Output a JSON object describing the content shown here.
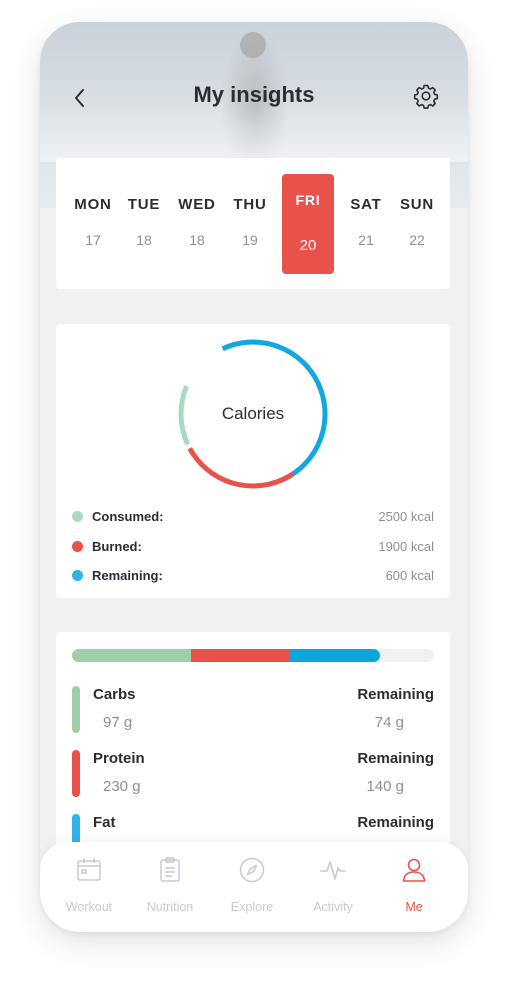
{
  "header": {
    "title": "My insights"
  },
  "week": [
    {
      "day": "MON",
      "date": "17",
      "active": false
    },
    {
      "day": "TUE",
      "date": "18",
      "active": false
    },
    {
      "day": "WED",
      "date": "18",
      "active": false
    },
    {
      "day": "THU",
      "date": "19",
      "active": false
    },
    {
      "day": "FRI",
      "date": "20",
      "active": true
    },
    {
      "day": "SAT",
      "date": "21",
      "active": false
    },
    {
      "day": "SUN",
      "date": "22",
      "active": false
    }
  ],
  "calories": {
    "label": "Calories",
    "legend": [
      {
        "label": "Consumed:",
        "value": "2500 kcal",
        "color": "#9fd1b5"
      },
      {
        "label": "Burned:",
        "value": "1900 kcal",
        "color": "#e8524a"
      },
      {
        "label": "Remaining:",
        "value": "600 kcal",
        "color": "#2fb3e8"
      }
    ]
  },
  "macros": {
    "bar": [
      {
        "name": "Carbs",
        "fraction": 0.33,
        "color": "#9fceaa"
      },
      {
        "name": "Protein",
        "fraction": 0.27,
        "color": "#e8524a"
      },
      {
        "name": "Fat",
        "fraction": 0.25,
        "color": "#0ea5dd"
      }
    ],
    "rows": [
      {
        "name": "Carbs",
        "amount": "97 g",
        "remaining_label": "Remaining",
        "remaining": "74 g",
        "color": "#9fceaa"
      },
      {
        "name": "Protein",
        "amount": "230 g",
        "remaining_label": "Remaining",
        "remaining": "140 g",
        "color": "#e8524a"
      },
      {
        "name": "Fat",
        "amount": "",
        "remaining_label": "Remaining",
        "remaining": "",
        "color": "#2fb3e8"
      }
    ]
  },
  "tabs": [
    {
      "label": "Workout",
      "icon": "calendar-icon",
      "active": false
    },
    {
      "label": "Nutrition",
      "icon": "clipboard-icon",
      "active": false
    },
    {
      "label": "Explore",
      "icon": "compass-icon",
      "active": false
    },
    {
      "label": "Activity",
      "icon": "pulse-icon",
      "active": false
    },
    {
      "label": "Me",
      "icon": "user-icon",
      "active": true
    }
  ]
}
